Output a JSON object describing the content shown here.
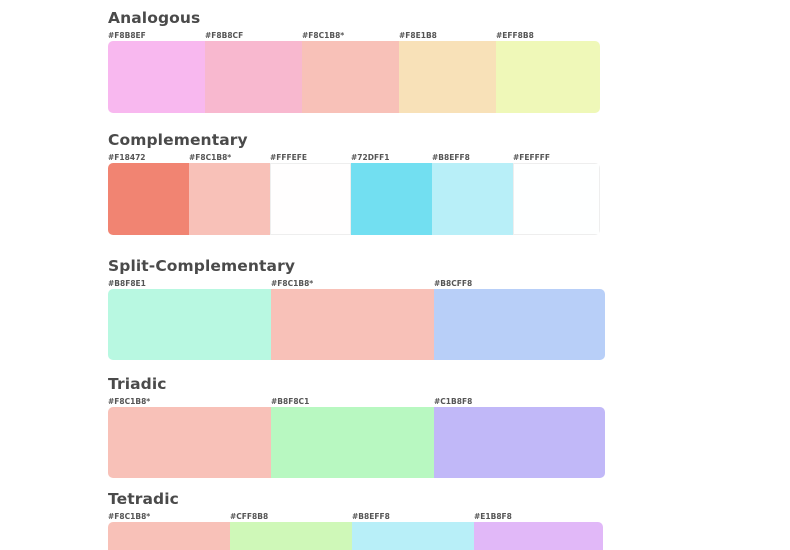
{
  "schemes": [
    {
      "title": "Analogous",
      "colors": [
        {
          "hex": "#F8B8EF",
          "label": "#F8B8EF"
        },
        {
          "hex": "#F8B8CF",
          "label": "#F8B8CF"
        },
        {
          "hex": "#F8C1B8",
          "label": "#F8C1B8*"
        },
        {
          "hex": "#F8E1B8",
          "label": "#F8E1B8"
        },
        {
          "hex": "#EFF8B8",
          "label": "#EFF8B8"
        }
      ]
    },
    {
      "title": "Complementary",
      "colors": [
        {
          "hex": "#F18472",
          "label": "#F18472"
        },
        {
          "hex": "#F8C1B8",
          "label": "#F8C1B8*"
        },
        {
          "hex": "#FFFEFE",
          "label": "#FFFEFE"
        },
        {
          "hex": "#72DFF1",
          "label": "#72DFF1"
        },
        {
          "hex": "#B8EFF8",
          "label": "#B8EFF8"
        },
        {
          "hex": "#FEFFFF",
          "label": "#FEFFFF"
        }
      ]
    },
    {
      "title": "Split-Complementary",
      "colors": [
        {
          "hex": "#B8F8E1",
          "label": "#B8F8E1"
        },
        {
          "hex": "#F8C1B8",
          "label": "#F8C1B8*"
        },
        {
          "hex": "#B8CFF8",
          "label": "#B8CFF8"
        }
      ]
    },
    {
      "title": "Triadic",
      "colors": [
        {
          "hex": "#F8C1B8",
          "label": "#F8C1B8*"
        },
        {
          "hex": "#B8F8C1",
          "label": "#B8F8C1"
        },
        {
          "hex": "#C1B8F8",
          "label": "#C1B8F8"
        }
      ]
    },
    {
      "title": "Tetradic",
      "colors": [
        {
          "hex": "#F8C1B8",
          "label": "#F8C1B8*"
        },
        {
          "hex": "#CFF8B8",
          "label": "#CFF8B8"
        },
        {
          "hex": "#B8EFF8",
          "label": "#B8EFF8"
        },
        {
          "hex": "#E1B8F8",
          "label": "#E1B8F8"
        }
      ]
    }
  ]
}
